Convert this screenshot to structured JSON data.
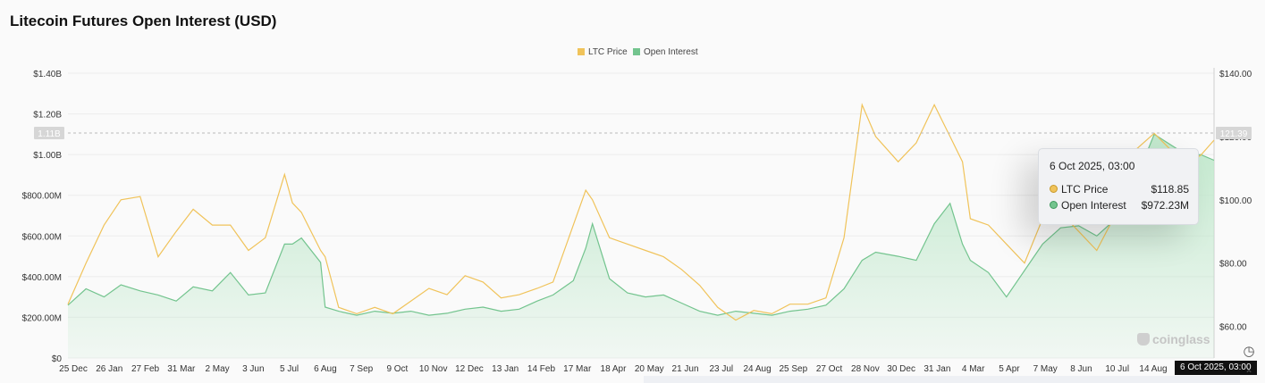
{
  "chart_title": "Litecoin Futures Open Interest (USD)",
  "colors": {
    "price": "#f0c35a",
    "oi_line": "#73c48e",
    "oi_fill": "#bfe8cb"
  },
  "tooltip": {
    "title": "6 Oct 2025, 03:00",
    "rows": [
      {
        "label": "LTC Price",
        "value": "$118.85"
      },
      {
        "label": "Open Interest",
        "value": "$972.23M"
      }
    ]
  },
  "crosshair": {
    "y_left_label": "1.11B",
    "y_right_label": "121.39",
    "x_label": "6 Oct 2025, 03:00"
  },
  "watermark": "coinglass",
  "icons": {
    "scroll": "clock-icon",
    "up": "chevron-up-icon"
  },
  "chart_data": {
    "type": "line",
    "title": "Litecoin Futures Open Interest (USD)",
    "legend": [
      "LTC Price",
      "Open Interest"
    ],
    "legend_position": "top-center",
    "grid": true,
    "x_tick_labels": [
      "25 Dec",
      "26 Jan",
      "27 Feb",
      "31 Mar",
      "2 May",
      "3 Jun",
      "5 Jul",
      "6 Aug",
      "7 Sep",
      "9 Oct",
      "10 Nov",
      "12 Dec",
      "13 Jan",
      "14 Feb",
      "17 Mar",
      "18 Apr",
      "20 May",
      "21 Jun",
      "23 Jul",
      "24 Aug",
      "25 Sep",
      "27 Oct",
      "28 Nov",
      "30 Dec",
      "31 Jan",
      "4 Mar",
      "5 Apr",
      "7 May",
      "8 Jun",
      "10 Jul",
      "14 Aug"
    ],
    "y_left": {
      "label": "",
      "min": 0,
      "max": 1400000000,
      "ticks": [
        0,
        200000000,
        400000000,
        600000000,
        800000000,
        1000000000,
        1200000000,
        1400000000
      ],
      "tick_labels": [
        "$0",
        "$200.00M",
        "$400.00M",
        "$600.00M",
        "$800.00M",
        "$1.00B",
        "$1.20B",
        "$1.40B"
      ]
    },
    "y_right": {
      "label": "",
      "min": 50,
      "max": 140,
      "ticks": [
        60,
        80,
        100,
        120,
        140
      ],
      "tick_labels": [
        "$60.00",
        "$80.00",
        "$100.00",
        "$120.00",
        "$140.00"
      ]
    },
    "x_range": [
      "2022-12-25",
      "2025-10-06"
    ],
    "series": [
      {
        "name": "Open Interest",
        "axis": "left",
        "unit": "USD",
        "x": [
          "2022-12-25",
          "2023-01-10",
          "2023-01-26",
          "2023-02-10",
          "2023-02-27",
          "2023-03-15",
          "2023-03-31",
          "2023-04-15",
          "2023-05-02",
          "2023-05-18",
          "2023-06-03",
          "2023-06-18",
          "2023-07-05",
          "2023-07-12",
          "2023-07-20",
          "2023-08-06",
          "2023-08-10",
          "2023-08-22",
          "2023-09-07",
          "2023-09-23",
          "2023-10-09",
          "2023-10-25",
          "2023-11-10",
          "2023-11-26",
          "2023-12-12",
          "2023-12-28",
          "2024-01-13",
          "2024-01-29",
          "2024-02-14",
          "2024-02-28",
          "2024-03-17",
          "2024-03-28",
          "2024-04-03",
          "2024-04-18",
          "2024-05-04",
          "2024-05-20",
          "2024-06-05",
          "2024-06-21",
          "2024-07-07",
          "2024-07-23",
          "2024-08-08",
          "2024-08-24",
          "2024-09-09",
          "2024-09-25",
          "2024-10-11",
          "2024-10-27",
          "2024-11-12",
          "2024-11-28",
          "2024-12-10",
          "2024-12-30",
          "2025-01-15",
          "2025-01-31",
          "2025-02-14",
          "2025-02-25",
          "2025-03-04",
          "2025-03-20",
          "2025-04-05",
          "2025-04-21",
          "2025-05-07",
          "2025-05-23",
          "2025-06-08",
          "2025-06-24",
          "2025-07-10",
          "2025-07-26",
          "2025-08-14",
          "2025-08-28",
          "2025-09-14",
          "2025-09-24",
          "2025-10-06"
        ],
        "values": [
          260000000,
          340000000,
          300000000,
          360000000,
          330000000,
          310000000,
          280000000,
          350000000,
          330000000,
          420000000,
          310000000,
          320000000,
          560000000,
          560000000,
          590000000,
          470000000,
          250000000,
          230000000,
          210000000,
          230000000,
          220000000,
          230000000,
          210000000,
          220000000,
          240000000,
          250000000,
          230000000,
          240000000,
          280000000,
          310000000,
          380000000,
          540000000,
          660000000,
          390000000,
          320000000,
          300000000,
          310000000,
          270000000,
          230000000,
          210000000,
          230000000,
          220000000,
          210000000,
          230000000,
          240000000,
          260000000,
          340000000,
          480000000,
          520000000,
          500000000,
          480000000,
          660000000,
          760000000,
          560000000,
          480000000,
          420000000,
          300000000,
          430000000,
          560000000,
          640000000,
          650000000,
          600000000,
          680000000,
          840000000,
          1100000000,
          1050000000,
          990000000,
          1000000000,
          972230000
        ]
      },
      {
        "name": "LTC Price",
        "axis": "right",
        "unit": "USD",
        "x": [
          "2022-12-25",
          "2023-01-10",
          "2023-01-26",
          "2023-02-10",
          "2023-02-27",
          "2023-03-15",
          "2023-03-31",
          "2023-04-15",
          "2023-05-02",
          "2023-05-18",
          "2023-06-03",
          "2023-06-18",
          "2023-07-05",
          "2023-07-12",
          "2023-07-20",
          "2023-08-06",
          "2023-08-10",
          "2023-08-22",
          "2023-09-07",
          "2023-09-23",
          "2023-10-09",
          "2023-10-25",
          "2023-11-10",
          "2023-11-26",
          "2023-12-12",
          "2023-12-28",
          "2024-01-13",
          "2024-01-29",
          "2024-02-14",
          "2024-02-28",
          "2024-03-17",
          "2024-03-28",
          "2024-04-03",
          "2024-04-18",
          "2024-05-04",
          "2024-05-20",
          "2024-06-05",
          "2024-06-21",
          "2024-07-07",
          "2024-07-23",
          "2024-08-08",
          "2024-08-24",
          "2024-09-09",
          "2024-09-25",
          "2024-10-11",
          "2024-10-27",
          "2024-11-12",
          "2024-11-28",
          "2024-12-10",
          "2024-12-30",
          "2025-01-15",
          "2025-01-31",
          "2025-02-14",
          "2025-02-25",
          "2025-03-04",
          "2025-03-20",
          "2025-04-05",
          "2025-04-21",
          "2025-05-07",
          "2025-05-23",
          "2025-06-08",
          "2025-06-24",
          "2025-07-10",
          "2025-07-26",
          "2025-08-14",
          "2025-08-28",
          "2025-09-14",
          "2025-09-24",
          "2025-10-06"
        ],
        "values": [
          67,
          80,
          92,
          100,
          101,
          82,
          90,
          97,
          92,
          92,
          84,
          88,
          108,
          99,
          96,
          84,
          82,
          66,
          64,
          66,
          64,
          68,
          72,
          70,
          76,
          74,
          69,
          70,
          72,
          74,
          92,
          103,
          100,
          88,
          86,
          84,
          82,
          78,
          73,
          66,
          62,
          65,
          64,
          67,
          67,
          69,
          88,
          130,
          120,
          112,
          118,
          130,
          120,
          112,
          94,
          92,
          86,
          80,
          94,
          96,
          90,
          84,
          95,
          115,
          121,
          116,
          112,
          114,
          118.85
        ]
      }
    ]
  }
}
